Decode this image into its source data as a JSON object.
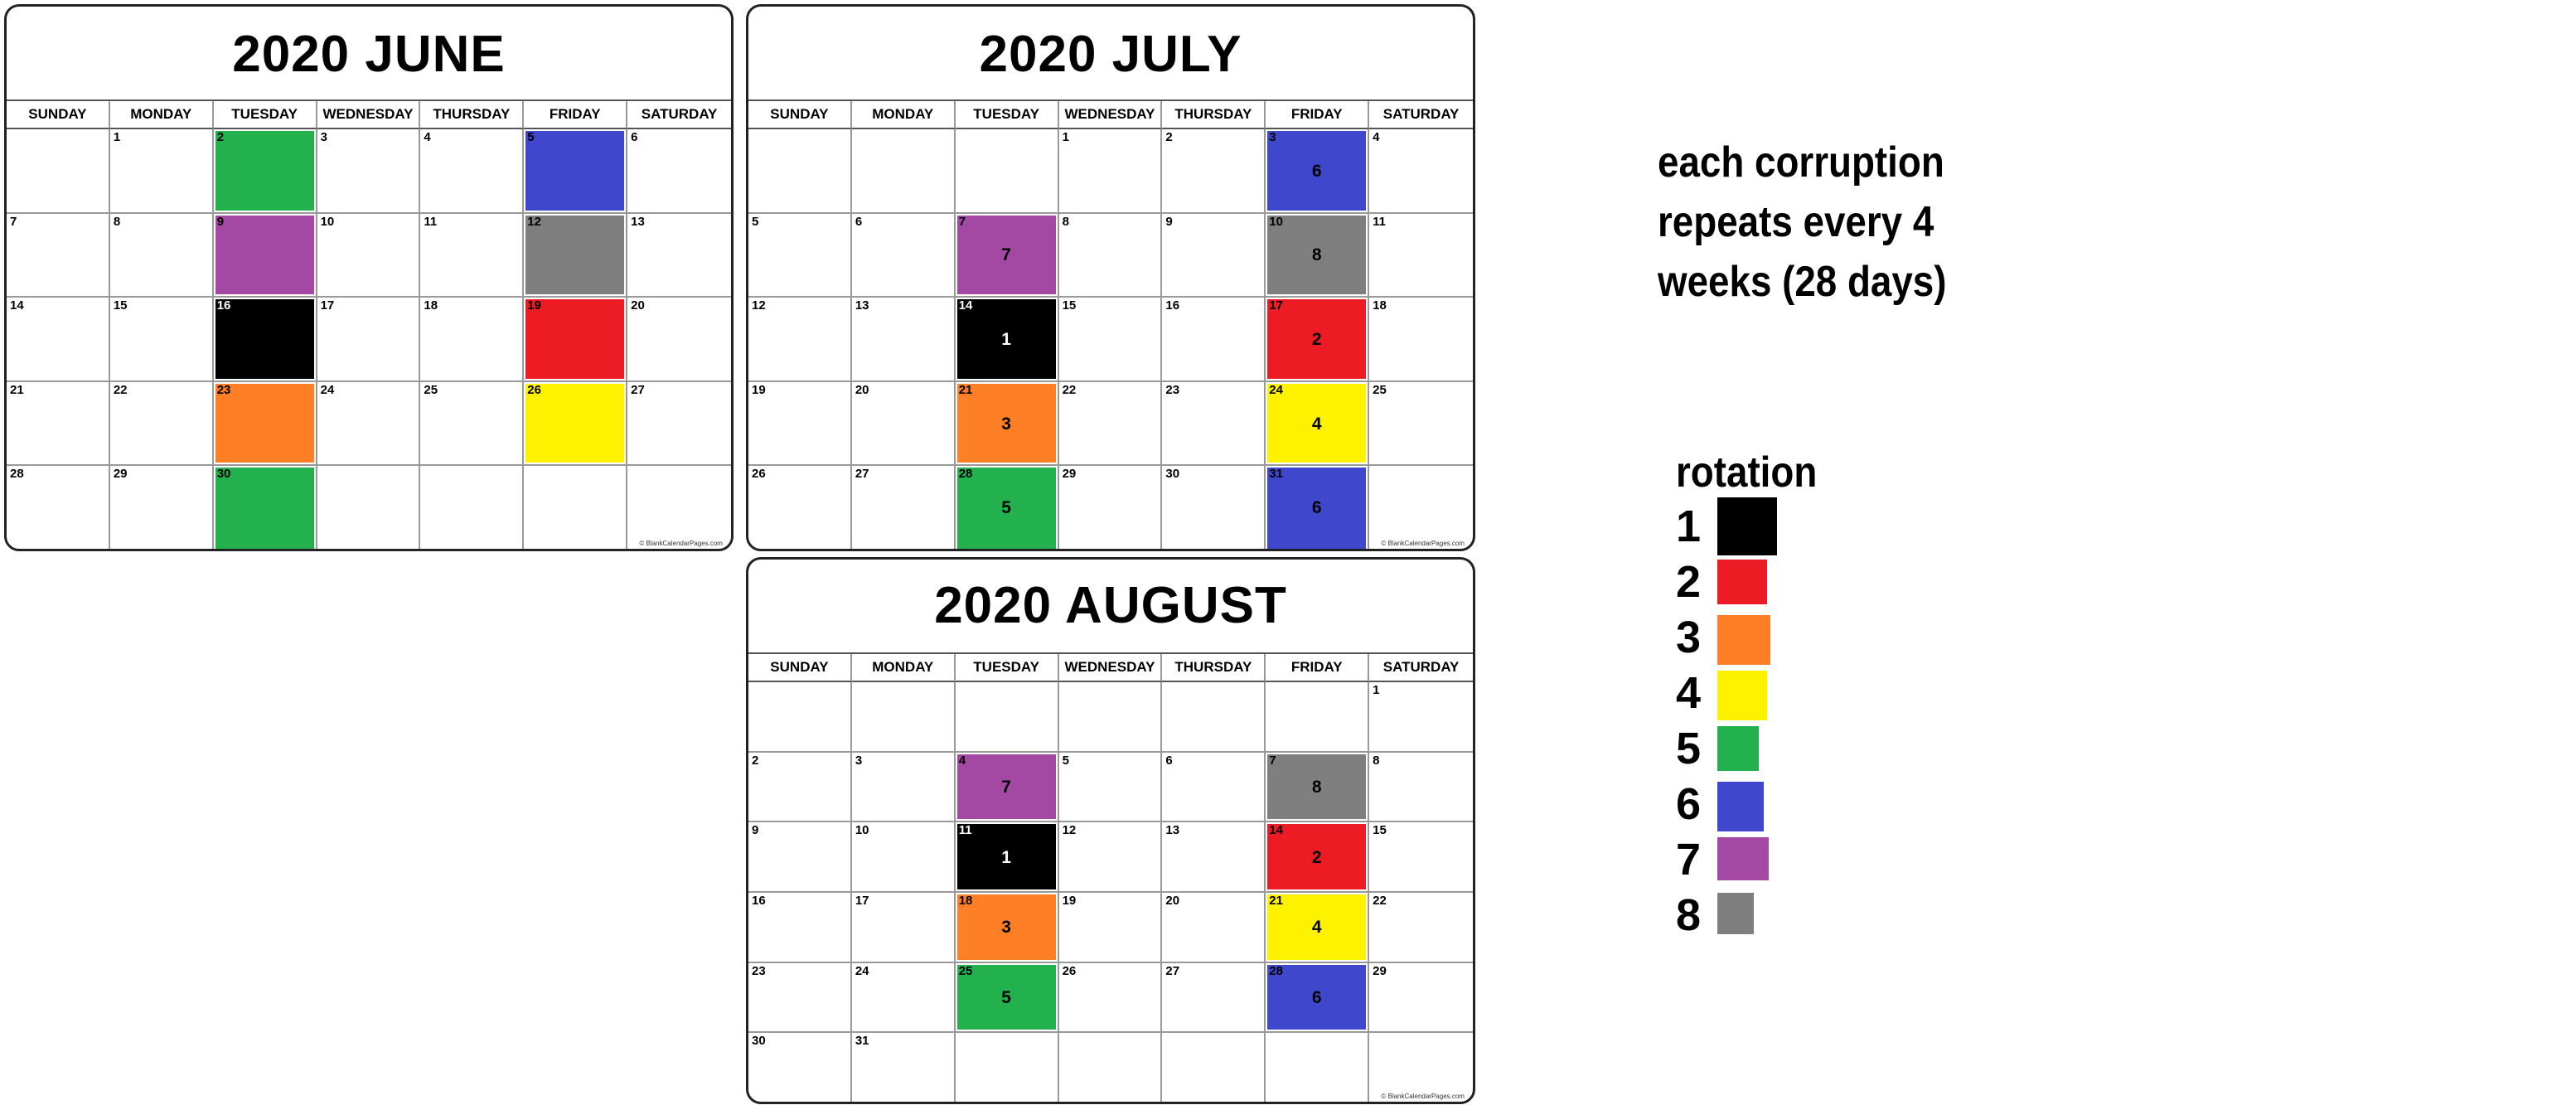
{
  "calendars": [
    {
      "id": "june",
      "title": "2020 JUNE",
      "weekdays": [
        "SUNDAY",
        "MONDAY",
        "TUESDAY",
        "WEDNESDAY",
        "THURSDAY",
        "FRIDAY",
        "SATURDAY"
      ],
      "weeks": [
        [
          "",
          "1",
          "2",
          "3",
          "4",
          "5",
          "6"
        ],
        [
          "7",
          "8",
          "9",
          "10",
          "11",
          "12",
          "13"
        ],
        [
          "14",
          "15",
          "16",
          "17",
          "18",
          "19",
          "20"
        ],
        [
          "21",
          "22",
          "23",
          "24",
          "25",
          "26",
          "27"
        ],
        [
          "28",
          "29",
          "30",
          "",
          "",
          "",
          ""
        ]
      ],
      "highlights": [
        {
          "day": "2",
          "color": "#22b14c",
          "label": ""
        },
        {
          "day": "5",
          "color": "#3f48cc",
          "label": ""
        },
        {
          "day": "9",
          "color": "#a349a4",
          "label": ""
        },
        {
          "day": "12",
          "color": "#7f7f7f",
          "label": ""
        },
        {
          "day": "16",
          "color": "#000000",
          "label": ""
        },
        {
          "day": "19",
          "color": "#ed1c24",
          "label": ""
        },
        {
          "day": "23",
          "color": "#ff7f27",
          "label": ""
        },
        {
          "day": "26",
          "color": "#fff200",
          "label": ""
        },
        {
          "day": "30",
          "color": "#22b14c",
          "label": ""
        }
      ],
      "credit": "© BlankCalendarPages.com"
    },
    {
      "id": "july",
      "title": "2020 JULY",
      "weekdays": [
        "SUNDAY",
        "MONDAY",
        "TUESDAY",
        "WEDNESDAY",
        "THURSDAY",
        "FRIDAY",
        "SATURDAY"
      ],
      "weeks": [
        [
          "",
          "",
          "",
          "1",
          "2",
          "3",
          "4"
        ],
        [
          "5",
          "6",
          "7",
          "8",
          "9",
          "10",
          "11"
        ],
        [
          "12",
          "13",
          "14",
          "15",
          "16",
          "17",
          "18"
        ],
        [
          "19",
          "20",
          "21",
          "22",
          "23",
          "24",
          "25"
        ],
        [
          "26",
          "27",
          "28",
          "29",
          "30",
          "31",
          ""
        ]
      ],
      "highlights": [
        {
          "day": "3",
          "color": "#3f48cc",
          "label": "6"
        },
        {
          "day": "7",
          "color": "#a349a4",
          "label": "7"
        },
        {
          "day": "10",
          "color": "#7f7f7f",
          "label": "8"
        },
        {
          "day": "14",
          "color": "#000000",
          "label": "1"
        },
        {
          "day": "17",
          "color": "#ed1c24",
          "label": "2"
        },
        {
          "day": "21",
          "color": "#ff7f27",
          "label": "3"
        },
        {
          "day": "24",
          "color": "#fff200",
          "label": "4"
        },
        {
          "day": "28",
          "color": "#22b14c",
          "label": "5"
        },
        {
          "day": "31",
          "color": "#3f48cc",
          "label": "6"
        }
      ],
      "credit": "© BlankCalendarPages.com"
    },
    {
      "id": "august",
      "title": "2020 AUGUST",
      "weekdays": [
        "SUNDAY",
        "MONDAY",
        "TUESDAY",
        "WEDNESDAY",
        "THURSDAY",
        "FRIDAY",
        "SATURDAY"
      ],
      "weeks": [
        [
          "",
          "",
          "",
          "",
          "",
          "",
          "1"
        ],
        [
          "2",
          "3",
          "4",
          "5",
          "6",
          "7",
          "8"
        ],
        [
          "9",
          "10",
          "11",
          "12",
          "13",
          "14",
          "15"
        ],
        [
          "16",
          "17",
          "18",
          "19",
          "20",
          "21",
          "22"
        ],
        [
          "23",
          "24",
          "25",
          "26",
          "27",
          "28",
          "29"
        ],
        [
          "30",
          "31",
          "",
          "",
          "",
          "",
          ""
        ]
      ],
      "highlights": [
        {
          "day": "4",
          "color": "#a349a4",
          "label": "7"
        },
        {
          "day": "7",
          "color": "#7f7f7f",
          "label": "8"
        },
        {
          "day": "11",
          "color": "#000000",
          "label": "1"
        },
        {
          "day": "14",
          "color": "#ed1c24",
          "label": "2"
        },
        {
          "day": "18",
          "color": "#ff7f27",
          "label": "3"
        },
        {
          "day": "21",
          "color": "#fff200",
          "label": "4"
        },
        {
          "day": "25",
          "color": "#22b14c",
          "label": "5"
        },
        {
          "day": "28",
          "color": "#3f48cc",
          "label": "6"
        }
      ],
      "credit": "© BlankCalendarPages.com"
    }
  ],
  "note": {
    "lines": [
      "each corruption",
      "repeats every 4",
      "weeks (28 days)"
    ]
  },
  "legend": {
    "title": "rotation",
    "items": [
      {
        "num": "1",
        "color": "#000000"
      },
      {
        "num": "2",
        "color": "#ed1c24"
      },
      {
        "num": "3",
        "color": "#ff7f27"
      },
      {
        "num": "4",
        "color": "#fff200"
      },
      {
        "num": "5",
        "color": "#22b14c"
      },
      {
        "num": "6",
        "color": "#3f48cc"
      },
      {
        "num": "7",
        "color": "#a349a4"
      },
      {
        "num": "8",
        "color": "#7f7f7f"
      }
    ]
  }
}
